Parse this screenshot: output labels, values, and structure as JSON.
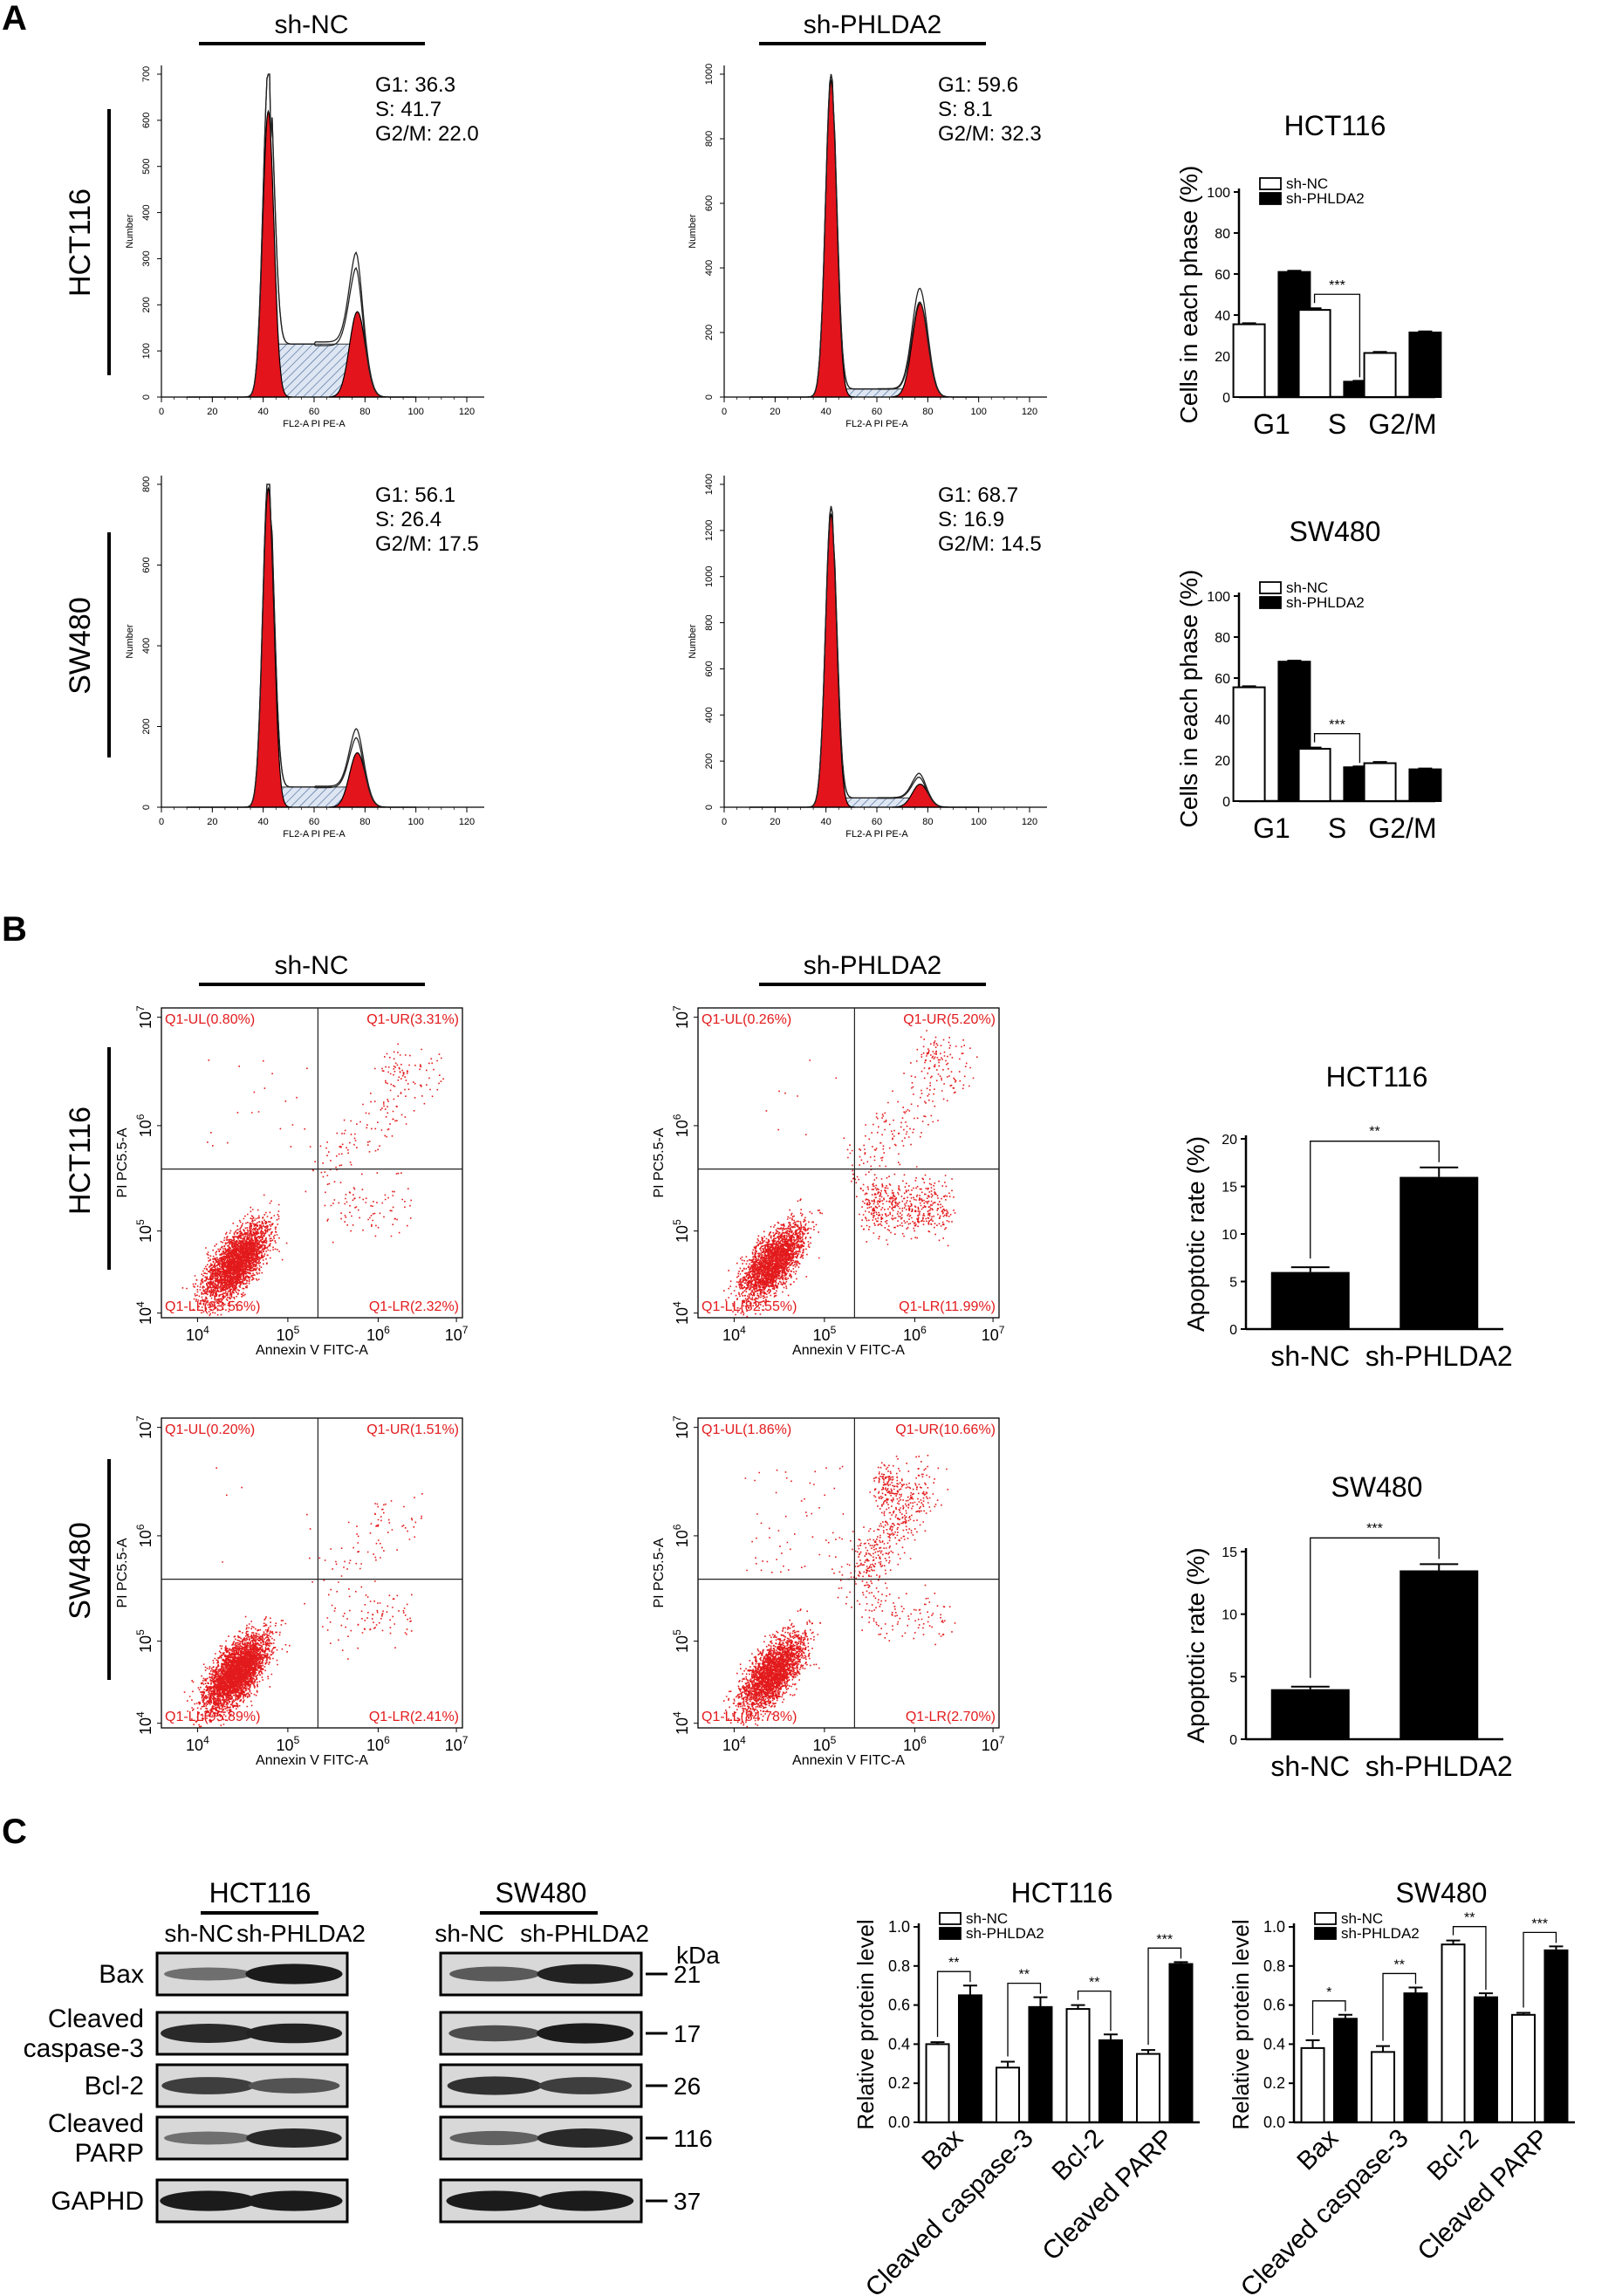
{
  "panel_labels": [
    "A",
    "B",
    "C"
  ],
  "groups": [
    "sh-NC",
    "sh-PHLDA2"
  ],
  "cell_lines": [
    "HCT116",
    "SW480"
  ],
  "flow_cell_cycle": {
    "x_label": "FL2-A PI PE-A",
    "y_label": "Number",
    "x_ticks": [
      "0",
      "20",
      "40",
      "60",
      "80",
      "100",
      "120"
    ],
    "plots": [
      {
        "line": "HCT116",
        "group": "sh-NC",
        "y_ticks": [
          "0",
          "100",
          "200",
          "300",
          "400",
          "500",
          "600",
          "700"
        ],
        "ymax": 700,
        "stats": [
          "G1: 36.3",
          "S: 41.7",
          "G2/M: 22.0"
        ],
        "g1_height": 620,
        "g2_height": 185,
        "s_level": 115
      },
      {
        "line": "HCT116",
        "group": "sh-PHLDA2",
        "y_ticks": [
          "0",
          "200",
          "400",
          "600",
          "800",
          "1000"
        ],
        "ymax": 1000,
        "stats": [
          "G1: 59.6",
          "S: 8.1",
          "G2/M: 32.3"
        ],
        "g1_height": 980,
        "g2_height": 290,
        "s_level": 25
      },
      {
        "line": "SW480",
        "group": "sh-NC",
        "y_ticks": [
          "0",
          "200",
          "400",
          "600",
          "800"
        ],
        "ymax": 800,
        "stats": [
          "G1: 56.1",
          "S: 26.4",
          "G2/M: 17.5"
        ],
        "g1_height": 790,
        "g2_height": 135,
        "s_level": 50
      },
      {
        "line": "SW480",
        "group": "sh-PHLDA2",
        "y_ticks": [
          "0",
          "200",
          "400",
          "600",
          "800",
          "1000",
          "1200",
          "1400"
        ],
        "ymax": 1400,
        "stats": [
          "G1: 68.7",
          "S: 16.9",
          "G2/M: 14.5"
        ],
        "g1_height": 1270,
        "g2_height": 100,
        "s_level": 40
      }
    ]
  },
  "flow_apoptosis": {
    "x_label": "Annexin V FITC-A",
    "y_label": "PI PC5.5-A",
    "tick_base": "10",
    "tick_exps": [
      "4",
      "5",
      "6",
      "7"
    ],
    "plots": [
      {
        "line": "HCT116",
        "group": "sh-NC",
        "ul": "Q1-UL(0.80%)",
        "ur": "Q1-UR(3.31%)",
        "ll": "Q1-LL(93.56%)",
        "lr": "Q1-LR(2.32%)"
      },
      {
        "line": "HCT116",
        "group": "sh-PHLDA2",
        "ul": "Q1-UL(0.26%)",
        "ur": "Q1-UR(5.20%)",
        "ll": "Q1-LL(82.55%)",
        "lr": "Q1-LR(11.99%)"
      },
      {
        "line": "SW480",
        "group": "sh-NC",
        "ul": "Q1-UL(0.20%)",
        "ur": "Q1-UR(1.51%)",
        "ll": "Q1-LL(95.89%)",
        "lr": "Q1-LR(2.41%)"
      },
      {
        "line": "SW480",
        "group": "sh-PHLDA2",
        "ul": "Q1-UL(1.86%)",
        "ur": "Q1-UR(10.66%)",
        "ll": "Q1-LL(84.78%)",
        "lr": "Q1-LR(2.70%)"
      }
    ]
  },
  "western_blot": {
    "kda_label": "kDa",
    "proteins": [
      "Bax",
      "Cleaved\ncaspase-3",
      "Bcl-2",
      "Cleaved\nPARP",
      "GAPHD"
    ],
    "kda": [
      "21",
      "17",
      "26",
      "116",
      "37"
    ]
  },
  "chart_data": [
    {
      "type": "bar",
      "title": "HCT116",
      "ylabel": "Cells in each phase (%)",
      "categories": [
        "G1",
        "S",
        "G2/M"
      ],
      "ylim": [
        0,
        100
      ],
      "yticks": [
        0,
        20,
        40,
        60,
        80,
        100
      ],
      "series": [
        {
          "name": "sh-NC",
          "values": [
            35.5,
            42.5,
            21.5
          ],
          "errors": [
            0.5,
            0.8,
            0.5
          ]
        },
        {
          "name": "sh-PHLDA2",
          "values": [
            61,
            7.5,
            31.5
          ],
          "errors": [
            0.6,
            0.4,
            0.5
          ]
        }
      ],
      "significance": [
        {
          "category_index": 1,
          "label": "***"
        }
      ],
      "legend": "top-left"
    },
    {
      "type": "bar",
      "title": "SW480",
      "ylabel": "Cells in each phase (%)",
      "categories": [
        "G1",
        "S",
        "G2/M"
      ],
      "ylim": [
        0,
        100
      ],
      "yticks": [
        0,
        20,
        40,
        60,
        80,
        100
      ],
      "series": [
        {
          "name": "sh-NC",
          "values": [
            55.5,
            25.5,
            18.5
          ],
          "errors": [
            0.5,
            0.6,
            0.6
          ]
        },
        {
          "name": "sh-PHLDA2",
          "values": [
            68,
            16.5,
            15.5
          ],
          "errors": [
            0.5,
            0.4,
            0.4
          ]
        }
      ],
      "significance": [
        {
          "category_index": 1,
          "label": "***"
        }
      ],
      "legend": "top-left"
    },
    {
      "type": "bar",
      "title": "HCT116",
      "ylabel": "Apoptotic rate (%)",
      "categories": [
        "sh-NC",
        "sh-PHLDA2"
      ],
      "ylim": [
        0,
        20
      ],
      "yticks": [
        0,
        5,
        10,
        15,
        20
      ],
      "series": [
        {
          "values": [
            6.0,
            16.0
          ],
          "errors": [
            0.5,
            1.0
          ]
        }
      ],
      "significance": [
        {
          "label": "**"
        }
      ]
    },
    {
      "type": "bar",
      "title": "SW480",
      "ylabel": "Apoptotic rate (%)",
      "categories": [
        "sh-NC",
        "sh-PHLDA2"
      ],
      "ylim": [
        0,
        15
      ],
      "yticks": [
        0,
        5,
        10,
        15
      ],
      "series": [
        {
          "values": [
            4.0,
            13.5
          ],
          "errors": [
            0.2,
            0.5
          ]
        }
      ],
      "significance": [
        {
          "label": "***"
        }
      ]
    },
    {
      "type": "bar",
      "title": "HCT116",
      "ylabel": "Relative protein level",
      "categories": [
        "Bax",
        "Cleaved caspase-3",
        "Bcl-2",
        "Cleaved PARP"
      ],
      "ylim": [
        0,
        1.0
      ],
      "yticks": [
        "0.0",
        "0.2",
        "0.4",
        "0.6",
        "0.8",
        "1.0"
      ],
      "series": [
        {
          "name": "sh-NC",
          "values": [
            0.4,
            0.28,
            0.58,
            0.35
          ],
          "errors": [
            0.01,
            0.03,
            0.02,
            0.02
          ]
        },
        {
          "name": "sh-PHLDA2",
          "values": [
            0.65,
            0.59,
            0.42,
            0.81
          ],
          "errors": [
            0.05,
            0.05,
            0.03,
            0.01
          ]
        }
      ],
      "significance": [
        {
          "category_index": 0,
          "label": "**"
        },
        {
          "category_index": 1,
          "label": "**"
        },
        {
          "category_index": 2,
          "label": "**"
        },
        {
          "category_index": 3,
          "label": "***"
        }
      ],
      "legend": "top-left"
    },
    {
      "type": "bar",
      "title": "SW480",
      "ylabel": "Relative protein level",
      "categories": [
        "Bax",
        "Cleaved caspase-3",
        "Bcl-2",
        "Cleaved PARP"
      ],
      "ylim": [
        0,
        1.0
      ],
      "yticks": [
        "0.0",
        "0.2",
        "0.4",
        "0.6",
        "0.8",
        "1.0"
      ],
      "series": [
        {
          "name": "sh-NC",
          "values": [
            0.38,
            0.36,
            0.91,
            0.55
          ],
          "errors": [
            0.04,
            0.03,
            0.02,
            0.01
          ]
        },
        {
          "name": "sh-PHLDA2",
          "values": [
            0.53,
            0.66,
            0.64,
            0.88
          ],
          "errors": [
            0.02,
            0.03,
            0.02,
            0.02
          ]
        }
      ],
      "significance": [
        {
          "category_index": 0,
          "label": "*"
        },
        {
          "category_index": 1,
          "label": "**"
        },
        {
          "category_index": 2,
          "label": "**"
        },
        {
          "category_index": 3,
          "label": "***"
        }
      ],
      "legend": "top-left"
    }
  ]
}
